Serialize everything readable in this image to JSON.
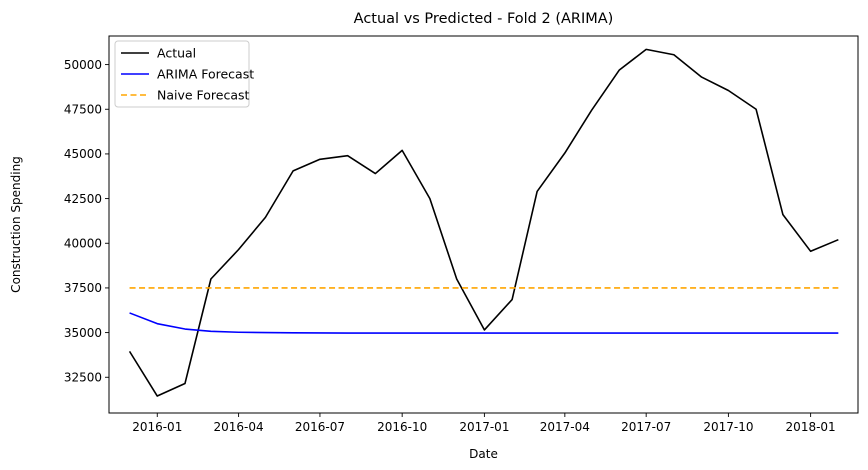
{
  "chart_data": {
    "type": "line",
    "title": "Actual vs Predicted - Fold 2 (ARIMA)",
    "xlabel": "Date",
    "ylabel": "Construction Spending",
    "x": [
      "2015-12-01",
      "2016-01-01",
      "2016-02-01",
      "2016-03-01",
      "2016-04-01",
      "2016-05-01",
      "2016-06-01",
      "2016-07-01",
      "2016-08-01",
      "2016-09-01",
      "2016-10-01",
      "2016-11-01",
      "2016-12-01",
      "2017-01-01",
      "2017-02-01",
      "2017-03-01",
      "2017-04-01",
      "2017-05-01",
      "2017-06-01",
      "2017-07-01",
      "2017-08-01",
      "2017-09-01",
      "2017-10-01",
      "2017-11-01",
      "2017-12-01",
      "2018-01-01",
      "2018-02-01"
    ],
    "x_ticks": [
      "2016-01",
      "2016-04",
      "2016-07",
      "2016-10",
      "2017-01",
      "2017-04",
      "2017-07",
      "2017-10",
      "2018-01"
    ],
    "y_ticks": [
      32500,
      35000,
      37500,
      40000,
      42500,
      45000,
      47500,
      50000
    ],
    "ylim": [
      30500,
      51600
    ],
    "xlim": [
      "2015-11-08",
      "2018-02-23"
    ],
    "grid": false,
    "legend_position": "top-left",
    "series": [
      {
        "name": "Actual",
        "color": "#000000",
        "style": "solid",
        "values": [
          33950,
          31450,
          32150,
          38000,
          39650,
          41450,
          44050,
          44700,
          44900,
          43900,
          45200,
          42500,
          38000,
          35150,
          36850,
          42900,
          45050,
          47450,
          49700,
          50850,
          50550,
          49300,
          48550,
          47500,
          41600,
          39550,
          40200
        ]
      },
      {
        "name": "ARIMA Forecast",
        "color": "#0000ff",
        "style": "solid",
        "values": [
          36100,
          35500,
          35200,
          35070,
          35020,
          35000,
          34990,
          34980,
          34975,
          34975,
          34975,
          34975,
          34975,
          34975,
          34975,
          34975,
          34975,
          34975,
          34975,
          34975,
          34975,
          34975,
          34975,
          34975,
          34975,
          34975,
          34975
        ]
      },
      {
        "name": "Naive Forecast",
        "color": "#ffa500",
        "style": "dashed",
        "values": [
          37500,
          37500,
          37500,
          37500,
          37500,
          37500,
          37500,
          37500,
          37500,
          37500,
          37500,
          37500,
          37500,
          37500,
          37500,
          37500,
          37500,
          37500,
          37500,
          37500,
          37500,
          37500,
          37500,
          37500,
          37500,
          37500,
          37500
        ]
      }
    ]
  }
}
